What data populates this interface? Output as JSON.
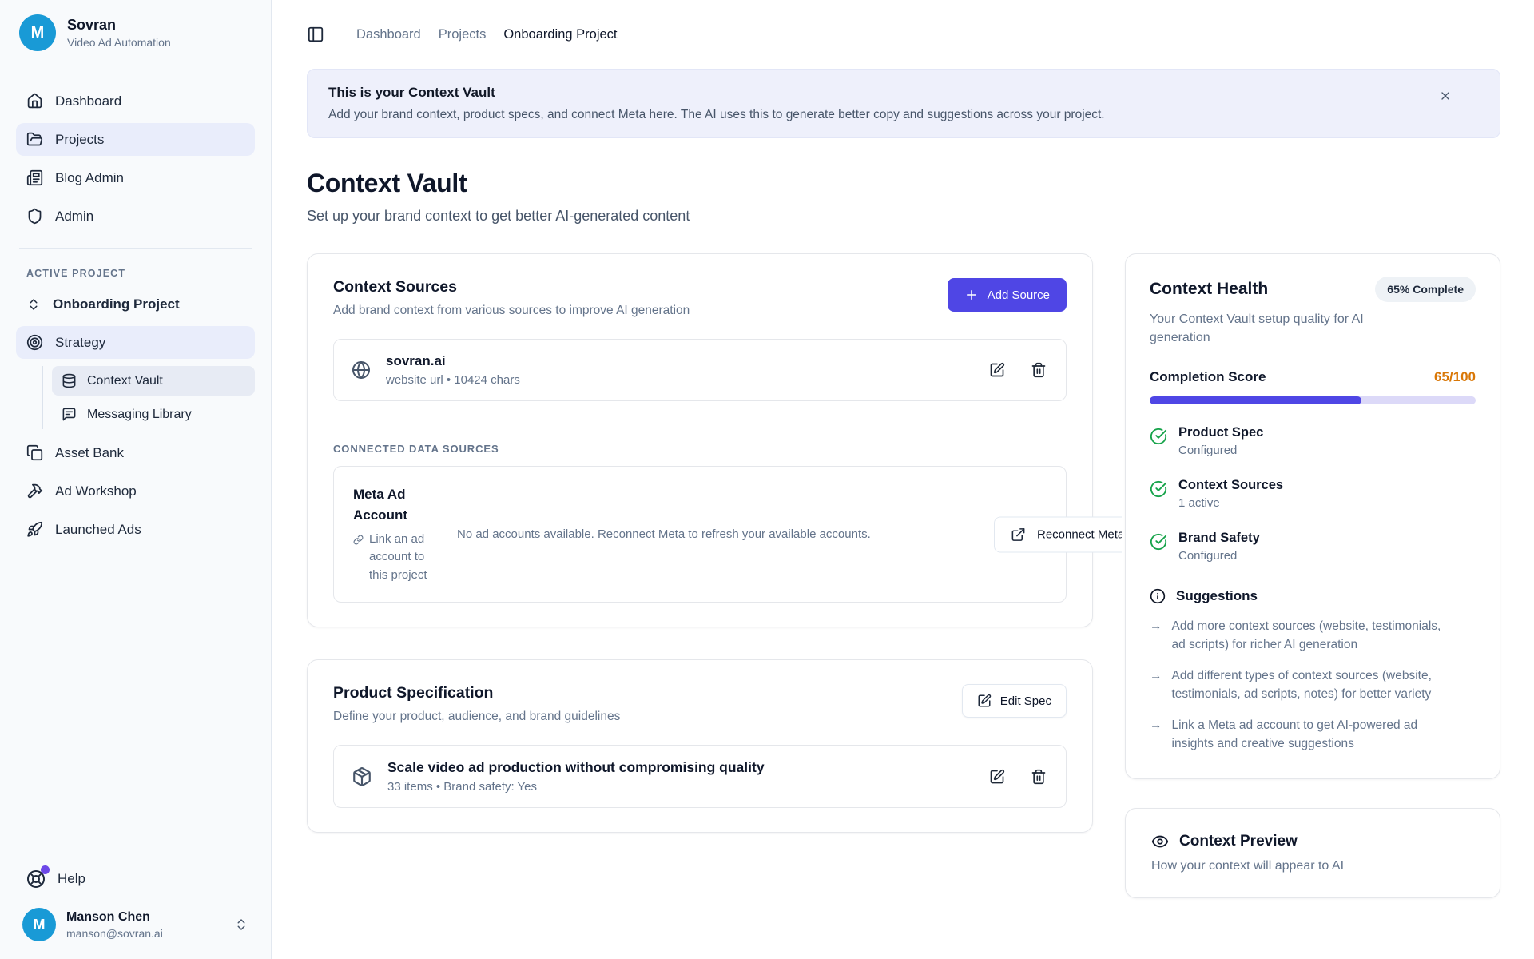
{
  "colors": {
    "accent": "#4f46e5",
    "amber": "#d97706",
    "green": "#16a34a",
    "avatar-blue": "#199ad6",
    "banner-bg": "#eef0fb",
    "active-bg": "#e9edfb",
    "violet": "#6d48e8"
  },
  "sidebar": {
    "brand": {
      "initial": "M",
      "name": "Sovran",
      "tagline": "Video Ad Automation"
    },
    "nav": [
      {
        "label": "Dashboard"
      },
      {
        "label": "Projects"
      },
      {
        "label": "Blog Admin"
      },
      {
        "label": "Admin"
      }
    ],
    "section_label": "ACTIVE PROJECT",
    "project": {
      "switcher_label": "Onboarding Project",
      "strategy_label": "Strategy",
      "sub": [
        {
          "label": "Context Vault"
        },
        {
          "label": "Messaging Library"
        }
      ],
      "items": [
        {
          "label": "Asset Bank"
        },
        {
          "label": "Ad Workshop"
        },
        {
          "label": "Launched Ads"
        }
      ]
    },
    "help_label": "Help",
    "user": {
      "initial": "M",
      "name": "Manson Chen",
      "email": "manson@sovran.ai"
    }
  },
  "breadcrumb": [
    {
      "label": "Dashboard"
    },
    {
      "label": "Projects"
    },
    {
      "label": "Onboarding Project"
    }
  ],
  "banner": {
    "title": "This is your Context Vault",
    "description": "Add your brand context, product specs, and connect Meta here. The AI uses this to generate better copy and suggestions across your project."
  },
  "page": {
    "title": "Context Vault",
    "subtitle": "Set up your brand context to get better AI-generated content"
  },
  "context_sources": {
    "title": "Context Sources",
    "description": "Add brand context from various sources to improve AI generation",
    "add_button": "Add Source",
    "sources": [
      {
        "name": "sovran.ai",
        "meta": "website url • 10424 chars"
      }
    ],
    "connected_label": "CONNECTED DATA SOURCES",
    "meta_account": {
      "title": "Meta Ad Account",
      "subtitle": "Link an ad account to this project",
      "message": "No ad accounts available. Reconnect Meta to refresh your available accounts.",
      "button": "Reconnect Meta"
    }
  },
  "product_spec": {
    "title": "Product Specification",
    "description": "Define your product, audience, and brand guidelines",
    "edit_button": "Edit Spec",
    "item": {
      "title": "Scale video ad production without compromising quality",
      "meta": "33 items • Brand safety: Yes"
    }
  },
  "context_health": {
    "title": "Context Health",
    "badge": "65% Complete",
    "description": "Your Context Vault setup quality for AI generation",
    "score_label": "Completion Score",
    "score_value": "65/100",
    "score_percent": 65,
    "checklist": [
      {
        "title": "Product Spec",
        "status": "Configured"
      },
      {
        "title": "Context Sources",
        "status": "1 active"
      },
      {
        "title": "Brand Safety",
        "status": "Configured"
      }
    ],
    "suggestions_title": "Suggestions",
    "suggestions": [
      {
        "text": "Add more context sources (website, testimonials, ad scripts) for richer AI generation"
      },
      {
        "text": "Add different types of context sources (website, testimonials, ad scripts, notes) for better variety"
      },
      {
        "text": "Link a Meta ad account to get AI-powered ad insights and creative suggestions"
      }
    ]
  },
  "context_preview": {
    "title": "Context Preview",
    "subtitle": "How your context will appear to AI"
  }
}
